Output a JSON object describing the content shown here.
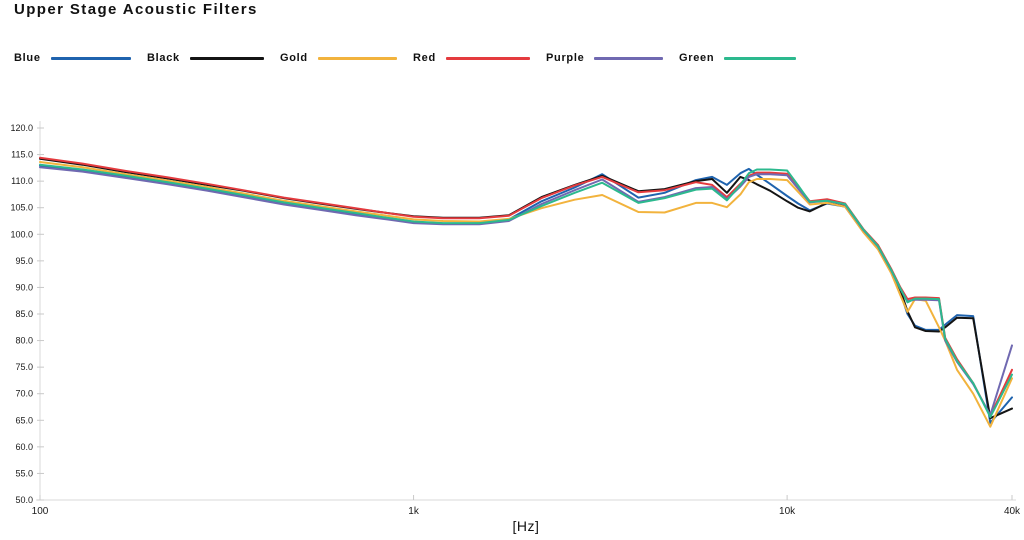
{
  "chart_data": {
    "type": "line",
    "title": "Upper Stage Acoustic Filters",
    "xlabel": "[Hz]",
    "ylabel": "",
    "x_scale": "log",
    "xlim": [
      100,
      40000
    ],
    "ylim": [
      50,
      120
    ],
    "grid": false,
    "legend_position": "top",
    "axis_color": "#d8d8d8",
    "tick_color": "#c9c9c9",
    "x": [
      100,
      130,
      170,
      220,
      280,
      350,
      450,
      560,
      700,
      850,
      1000,
      1200,
      1500,
      1800,
      2200,
      2700,
      3200,
      4000,
      4700,
      5700,
      6300,
      6900,
      7500,
      7900,
      8300,
      9000,
      10000,
      10700,
      11500,
      12800,
      14300,
      16000,
      17500,
      19000,
      20100,
      21000,
      22000,
      23500,
      25500,
      26500,
      28500,
      31500,
      35000,
      40000
    ],
    "xticks": {
      "values": [
        100,
        1000,
        10000,
        40000
      ],
      "labels": [
        "100",
        "1k",
        "10k",
        "40k"
      ]
    },
    "yticks": {
      "values": [
        120,
        115,
        110,
        105,
        100,
        95,
        90,
        85,
        80,
        75,
        70,
        65,
        60,
        55,
        50
      ],
      "labels": [
        "120.0",
        "115.0",
        "110.0",
        "105.0",
        "100.0",
        "95.0",
        "90.0",
        "85.0",
        "80.0",
        "75.0",
        "70.0",
        "65.0",
        "60.0",
        "55.0",
        "50.0"
      ]
    },
    "series": [
      {
        "name": "Blue",
        "color": "#1f63ae",
        "values": [
          112.9,
          112.0,
          110.8,
          109.6,
          108.4,
          107.2,
          105.8,
          104.8,
          103.8,
          103.0,
          102.3,
          102.0,
          102.0,
          102.8,
          106.2,
          108.8,
          111.3,
          106.9,
          107.8,
          110.2,
          110.8,
          109.3,
          111.5,
          112.3,
          111.2,
          109.5,
          107.2,
          105.8,
          104.5,
          105.8,
          105.2,
          100.5,
          97.3,
          92.8,
          89.0,
          85.0,
          82.8,
          82.0,
          82.0,
          83.0,
          84.8,
          84.6,
          64.5,
          69.3
        ]
      },
      {
        "name": "Black",
        "color": "#141414",
        "values": [
          114.2,
          113.1,
          111.7,
          110.5,
          109.3,
          108.2,
          106.8,
          105.8,
          104.8,
          104.0,
          103.4,
          103.1,
          103.1,
          103.6,
          107.0,
          109.3,
          111.0,
          108.1,
          108.5,
          110.0,
          110.4,
          107.8,
          110.8,
          110.2,
          109.4,
          108.2,
          106.2,
          105.0,
          104.3,
          105.9,
          105.3,
          100.7,
          97.5,
          93.0,
          89.5,
          85.5,
          82.5,
          81.8,
          81.7,
          82.5,
          84.3,
          84.2,
          65.4,
          67.2
        ]
      },
      {
        "name": "Gold",
        "color": "#f2b33d",
        "values": [
          113.6,
          112.6,
          111.3,
          110.1,
          108.9,
          107.7,
          106.3,
          105.3,
          104.3,
          103.5,
          102.8,
          102.5,
          102.4,
          102.9,
          104.9,
          106.5,
          107.4,
          104.2,
          104.1,
          105.9,
          105.9,
          105.1,
          107.5,
          109.8,
          110.4,
          110.4,
          110.2,
          108.0,
          105.6,
          105.9,
          105.2,
          100.4,
          97.2,
          92.7,
          88.5,
          85.4,
          87.8,
          87.5,
          82.5,
          80.0,
          74.5,
          70.0,
          63.8,
          72.9
        ]
      },
      {
        "name": "Red",
        "color": "#e43b3e",
        "values": [
          114.4,
          113.3,
          111.9,
          110.7,
          109.5,
          108.3,
          106.9,
          105.9,
          104.9,
          104.0,
          103.3,
          103.0,
          103.0,
          103.5,
          106.8,
          109.2,
          110.8,
          107.9,
          108.3,
          109.8,
          109.3,
          107.0,
          109.5,
          111.0,
          111.6,
          111.6,
          111.4,
          109.0,
          106.2,
          106.6,
          105.8,
          101.0,
          98.0,
          93.5,
          90.0,
          87.8,
          88.1,
          88.1,
          88.0,
          80.5,
          76.5,
          72.0,
          65.8,
          74.5
        ]
      },
      {
        "name": "Purple",
        "color": "#7069b1",
        "values": [
          112.6,
          111.8,
          110.6,
          109.4,
          108.2,
          107.0,
          105.6,
          104.6,
          103.6,
          102.8,
          102.1,
          101.9,
          101.9,
          102.5,
          105.7,
          108.3,
          110.3,
          106.1,
          107.0,
          108.7,
          108.9,
          106.6,
          109.0,
          110.8,
          111.3,
          111.3,
          111.1,
          108.6,
          106.0,
          106.3,
          105.6,
          100.8,
          97.7,
          93.2,
          89.7,
          87.4,
          87.7,
          87.7,
          87.6,
          80.0,
          76.0,
          71.8,
          66.0,
          79.1
        ]
      },
      {
        "name": "Green",
        "color": "#2cb98e",
        "values": [
          113.1,
          112.2,
          111.0,
          109.8,
          108.6,
          107.4,
          106.0,
          105.0,
          104.0,
          103.1,
          102.4,
          102.1,
          102.1,
          102.7,
          105.3,
          107.8,
          109.7,
          105.9,
          106.8,
          108.4,
          108.6,
          106.4,
          109.3,
          111.5,
          112.2,
          112.2,
          112.0,
          109.2,
          106.1,
          106.3,
          105.7,
          100.9,
          97.8,
          93.3,
          89.8,
          87.2,
          87.9,
          87.9,
          87.8,
          80.3,
          76.2,
          72.0,
          65.6,
          73.6
        ]
      }
    ]
  }
}
